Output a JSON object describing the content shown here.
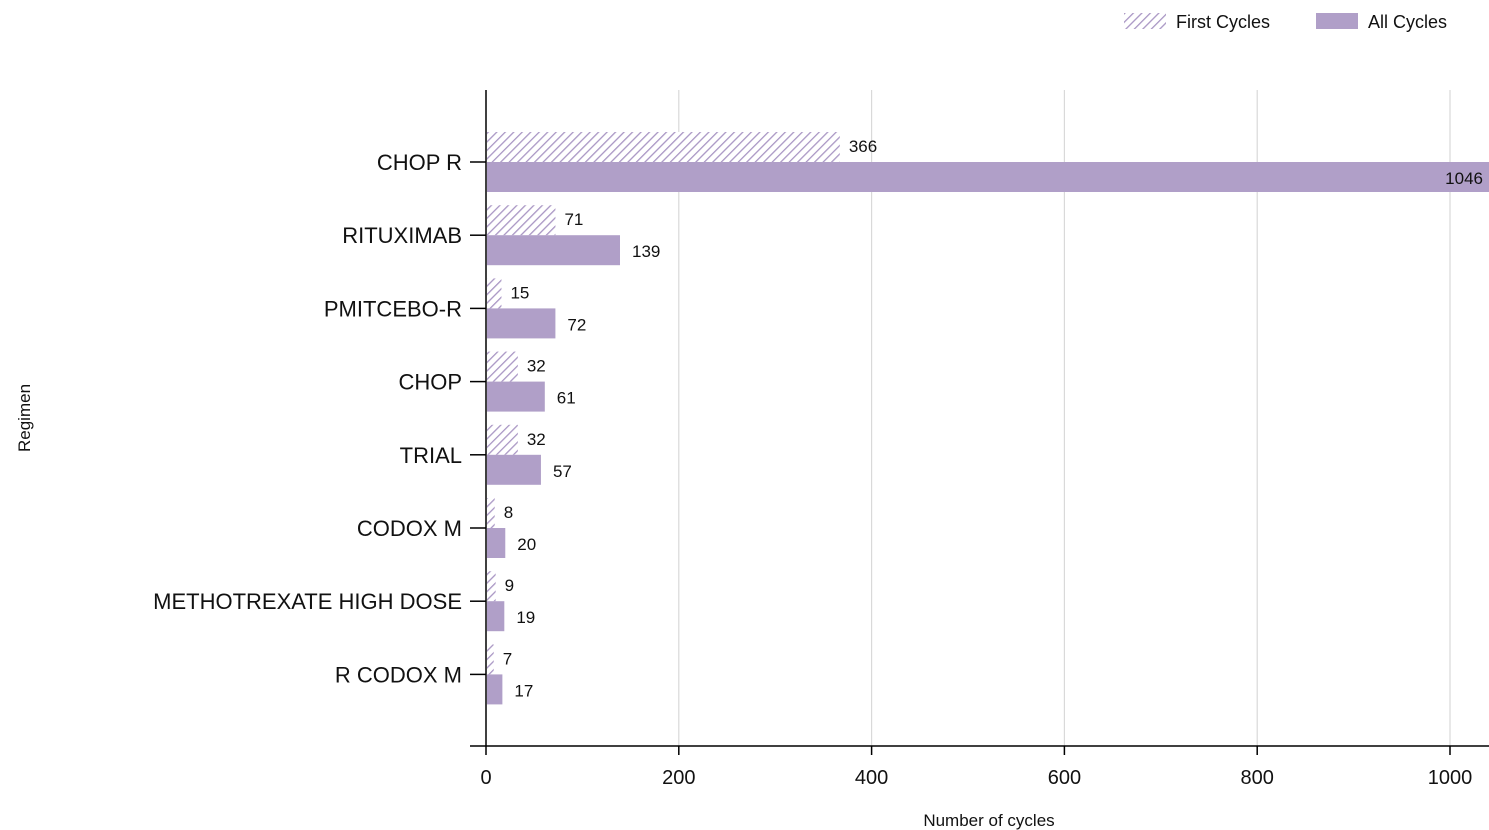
{
  "chart_data": {
    "type": "bar",
    "orientation": "horizontal",
    "xlabel": "Number of cycles",
    "ylabel": "Regimen",
    "xlim": [
      0,
      1040
    ],
    "xticks": [
      0,
      200,
      400,
      600,
      800,
      1000
    ],
    "grid": true,
    "legend_position": "top-right",
    "categories": [
      "CHOP R",
      "RITUXIMAB",
      "PMITCEBO-R",
      "CHOP",
      "TRIAL",
      "CODOX M",
      "METHOTREXATE HIGH DOSE",
      "R CODOX M"
    ],
    "series": [
      {
        "name": "First Cycles",
        "pattern": "hatched",
        "color": "#b09fc8",
        "values": [
          366,
          71,
          15,
          32,
          32,
          8,
          9,
          7
        ]
      },
      {
        "name": "All Cycles",
        "pattern": "solid",
        "color": "#b09fc8",
        "values": [
          1046,
          139,
          72,
          61,
          57,
          20,
          19,
          17
        ]
      }
    ]
  }
}
